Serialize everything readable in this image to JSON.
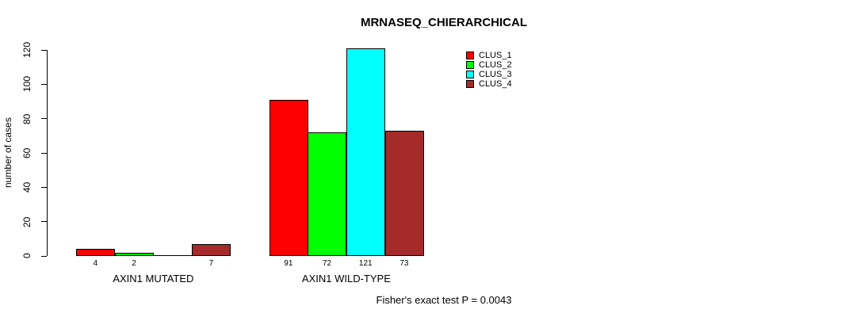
{
  "chart_data": {
    "type": "bar",
    "title": "MRNASEQ_CHIERARCHICAL",
    "ylabel": "number of cases",
    "ylim": [
      0,
      120
    ],
    "yticks": [
      0,
      20,
      40,
      60,
      80,
      100,
      120
    ],
    "grid": false,
    "legend_position": "top-right-outside",
    "categories": [
      "AXIN1 MUTATED",
      "AXIN1 WILD-TYPE"
    ],
    "series": [
      {
        "name": "CLUS_1",
        "color": "#FF0000",
        "values": [
          4,
          91
        ]
      },
      {
        "name": "CLUS_2",
        "color": "#00FF00",
        "values": [
          2,
          72
        ]
      },
      {
        "name": "CLUS_3",
        "color": "#00FFFF",
        "values": [
          0,
          121
        ]
      },
      {
        "name": "CLUS_4",
        "color": "#A52A2A",
        "values": [
          7,
          73
        ]
      }
    ],
    "bar_value_labels": [
      [
        "4",
        "2",
        "",
        "7"
      ],
      [
        "91",
        "72",
        "121",
        "73"
      ]
    ],
    "annotation": "Fisher's exact test P = 0.0043"
  }
}
